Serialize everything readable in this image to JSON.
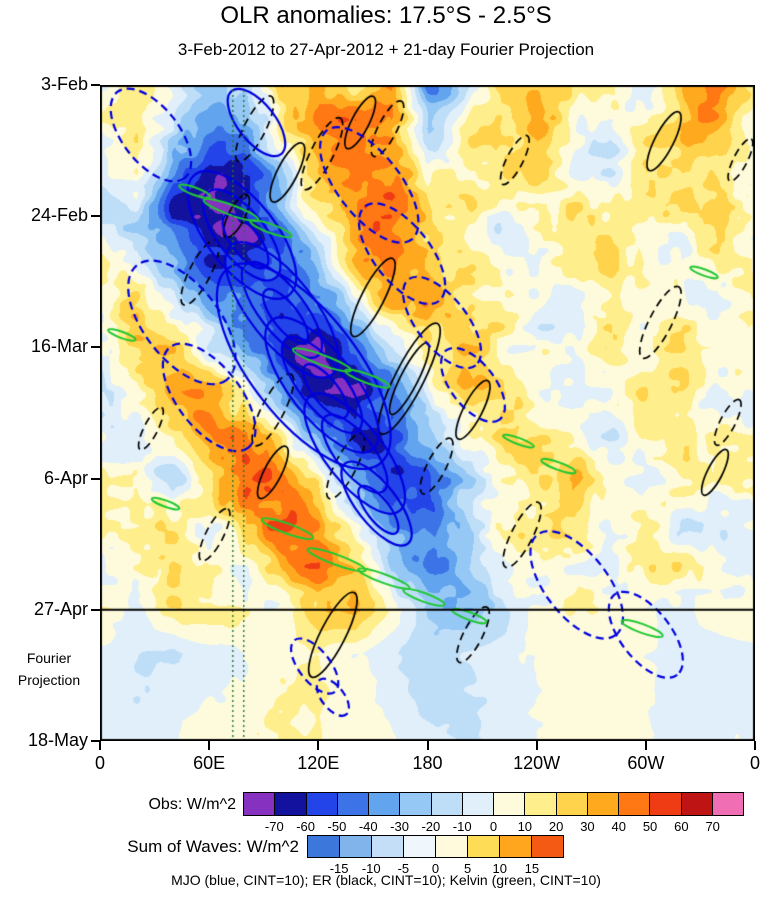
{
  "figure": {
    "title": "OLR anomalies: 17.5°S - 2.5°S",
    "subtitle": "3-Feb-2012 to 27-Apr-2012 + 21-day Fourier Projection",
    "projection_label_line1": "Fourier",
    "projection_label_line2": "Projection",
    "footnote": "MJO (blue, CINT=10); ER (black, CINT=10); Kelvin (green, CINT=10)"
  },
  "chart_data": {
    "type": "heatmap",
    "title": "OLR anomalies: 17.5°S - 2.5°S",
    "subtitle": "3-Feb-2012 to 27-Apr-2012 + 21-day Fourier Projection",
    "x_axis": {
      "ticks": [
        {
          "lon": 0,
          "label": "0"
        },
        {
          "lon": 60,
          "label": "60E"
        },
        {
          "lon": 120,
          "label": "120E"
        },
        {
          "lon": 180,
          "label": "180"
        },
        {
          "lon": 240,
          "label": "120W"
        },
        {
          "lon": 300,
          "label": "60W"
        },
        {
          "lon": 360,
          "label": "0"
        }
      ]
    },
    "y_axis": {
      "ticks": [
        {
          "day": 0,
          "label": "3-Feb"
        },
        {
          "day": 21,
          "label": "24-Feb"
        },
        {
          "day": 42,
          "label": "16-Mar"
        },
        {
          "day": 63,
          "label": "6-Apr"
        },
        {
          "day": 84,
          "label": "27-Apr"
        },
        {
          "day": 105,
          "label": "18-May"
        }
      ]
    },
    "projection_start_day": 84,
    "obs_colorbar": {
      "label": "Obs: W/m^2",
      "tick_labels": [
        "-70",
        "-60",
        "-50",
        "-40",
        "-30",
        "-20",
        "-10",
        "0",
        "10",
        "20",
        "30",
        "40",
        "50",
        "60",
        "70"
      ],
      "colors": [
        "#8631BF",
        "#12129E",
        "#2244E8",
        "#3C74E8",
        "#62A4EE",
        "#96C8F5",
        "#BEDEF8",
        "#E1EFFA",
        "#FEFBDC",
        "#FFEE8C",
        "#FFD34B",
        "#FFAA1E",
        "#FF7814",
        "#F03C14",
        "#BE1414",
        "#F06EB4"
      ]
    },
    "waves_colorbar": {
      "label": "Sum of Waves: W/m^2",
      "tick_labels": [
        "-15",
        "-10",
        "-5",
        "0",
        "5",
        "10",
        "15"
      ],
      "colors": [
        "#3C78DC",
        "#82B4EC",
        "#C3DEF6",
        "#EFF7FD",
        "#FFFADC",
        "#FFDC55",
        "#FFA51E",
        "#F55A14"
      ]
    },
    "field": {
      "units": "W/m^2",
      "lon_start": 0,
      "lon_step": 20,
      "day_start": 0,
      "day_step": 7,
      "values": [
        [
          10,
          20,
          -10,
          -30,
          -20,
          25,
          30,
          20,
          45,
          -35,
          -20,
          25,
          35,
          15,
          5,
          -10,
          30,
          45,
          10
        ],
        [
          5,
          25,
          -20,
          -45,
          -40,
          10,
          35,
          45,
          30,
          -25,
          10,
          20,
          30,
          10,
          -5,
          15,
          40,
          25,
          5
        ],
        [
          -5,
          10,
          -45,
          -65,
          -55,
          -20,
          30,
          50,
          40,
          10,
          15,
          10,
          20,
          5,
          -10,
          20,
          25,
          10,
          -5
        ],
        [
          -10,
          -15,
          -55,
          -70,
          -60,
          -35,
          15,
          40,
          45,
          25,
          10,
          -5,
          10,
          15,
          5,
          10,
          15,
          30,
          5
        ],
        [
          5,
          -10,
          -30,
          -55,
          -65,
          -50,
          -20,
          25,
          40,
          30,
          15,
          5,
          -5,
          10,
          20,
          5,
          -10,
          20,
          10
        ],
        [
          10,
          20,
          -10,
          -35,
          -55,
          -65,
          -45,
          -10,
          30,
          35,
          20,
          10,
          5,
          -5,
          10,
          15,
          5,
          -5,
          5
        ],
        [
          5,
          25,
          30,
          -5,
          -35,
          -60,
          -70,
          -50,
          -15,
          25,
          30,
          15,
          -5,
          5,
          15,
          10,
          20,
          10,
          5
        ],
        [
          -5,
          10,
          35,
          30,
          0,
          -35,
          -60,
          -65,
          -40,
          0,
          25,
          20,
          10,
          -5,
          5,
          20,
          10,
          -5,
          -5
        ],
        [
          5,
          -5,
          15,
          40,
          45,
          10,
          -30,
          -55,
          -60,
          -30,
          10,
          20,
          15,
          10,
          -10,
          5,
          15,
          20,
          5
        ],
        [
          10,
          5,
          -10,
          25,
          50,
          40,
          5,
          -35,
          -55,
          -45,
          -15,
          15,
          25,
          30,
          10,
          -5,
          10,
          5,
          10
        ],
        [
          5,
          15,
          10,
          -5,
          30,
          50,
          35,
          -5,
          -40,
          -50,
          -25,
          5,
          20,
          15,
          5,
          10,
          -5,
          -10,
          5
        ],
        [
          -5,
          10,
          25,
          10,
          5,
          35,
          45,
          25,
          -15,
          -35,
          -30,
          -10,
          10,
          5,
          -5,
          15,
          10,
          5,
          -5
        ],
        [
          5,
          -5,
          15,
          20,
          10,
          5,
          30,
          35,
          10,
          -20,
          -25,
          -15,
          5,
          10,
          10,
          5,
          -5,
          10,
          5
        ],
        [
          0,
          -8,
          -12,
          -5,
          0,
          5,
          8,
          0,
          -10,
          -15,
          -10,
          -5,
          0,
          5,
          5,
          0,
          -8,
          -10,
          0
        ],
        [
          -5,
          -10,
          -8,
          0,
          5,
          10,
          12,
          5,
          -5,
          -12,
          -12,
          -8,
          0,
          5,
          8,
          0,
          -5,
          -8,
          -5
        ],
        [
          0,
          -5,
          0,
          5,
          8,
          12,
          10,
          5,
          0,
          -8,
          -10,
          -5,
          0,
          5,
          5,
          0,
          -5,
          0,
          0
        ]
      ]
    },
    "reference_lines": {
      "color": "#1E7832",
      "style": "dotted",
      "lons": [
        73,
        79
      ]
    },
    "overlays": {
      "mjo": {
        "label": "MJO",
        "color": "#0000E0",
        "cint": 10,
        "ellipses": [
          {
            "lon": 112,
            "day": 45,
            "a": 68,
            "b": 8.5,
            "angle": 52,
            "dash": false
          },
          {
            "lon": 78,
            "day": 24,
            "a": 42,
            "b": 5.5,
            "angle": 52,
            "dash": false
          },
          {
            "lon": 78,
            "day": 24,
            "a": 30,
            "b": 3.8,
            "angle": 52,
            "dash": false
          },
          {
            "lon": 80,
            "day": 25,
            "a": 18,
            "b": 2.2,
            "angle": 52,
            "dash": false
          },
          {
            "lon": 100,
            "day": 36,
            "a": 45,
            "b": 5.2,
            "angle": 52,
            "dash": false
          },
          {
            "lon": 100,
            "day": 36,
            "a": 32,
            "b": 3.6,
            "angle": 52,
            "dash": false
          },
          {
            "lon": 102,
            "day": 37,
            "a": 18,
            "b": 2.0,
            "angle": 52,
            "dash": false
          },
          {
            "lon": 122,
            "day": 48,
            "a": 45,
            "b": 5.2,
            "angle": 52,
            "dash": false
          },
          {
            "lon": 122,
            "day": 48,
            "a": 32,
            "b": 3.6,
            "angle": 52,
            "dash": false
          },
          {
            "lon": 124,
            "day": 49,
            "a": 18,
            "b": 2.0,
            "angle": 52,
            "dash": false
          },
          {
            "lon": 140,
            "day": 59,
            "a": 40,
            "b": 4.6,
            "angle": 52,
            "dash": false
          },
          {
            "lon": 140,
            "day": 59,
            "a": 26,
            "b": 3.0,
            "angle": 52,
            "dash": false
          },
          {
            "lon": 152,
            "day": 67,
            "a": 28,
            "b": 3.2,
            "angle": 52,
            "dash": false
          },
          {
            "lon": 153,
            "day": 68,
            "a": 16,
            "b": 1.8,
            "angle": 52,
            "dash": false
          },
          {
            "lon": 86,
            "day": 6,
            "a": 22,
            "b": 3.0,
            "angle": 52,
            "dash": false
          },
          {
            "lon": 28,
            "day": 8,
            "a": 30,
            "b": 4.5,
            "angle": 52,
            "dash": true
          },
          {
            "lon": 45,
            "day": 38,
            "a": 40,
            "b": 6.0,
            "angle": 52,
            "dash": true
          },
          {
            "lon": 60,
            "day": 50,
            "a": 35,
            "b": 5.0,
            "angle": 52,
            "dash": true
          },
          {
            "lon": 148,
            "day": 16,
            "a": 38,
            "b": 5.0,
            "angle": 52,
            "dash": true
          },
          {
            "lon": 166,
            "day": 27,
            "a": 33,
            "b": 4.5,
            "angle": 52,
            "dash": true
          },
          {
            "lon": 188,
            "day": 38,
            "a": 30,
            "b": 4.0,
            "angle": 52,
            "dash": true
          },
          {
            "lon": 205,
            "day": 48,
            "a": 24,
            "b": 3.5,
            "angle": 52,
            "dash": true
          },
          {
            "lon": 262,
            "day": 80,
            "a": 35,
            "b": 5.0,
            "angle": 52,
            "dash": true
          },
          {
            "lon": 300,
            "day": 88,
            "a": 28,
            "b": 4.0,
            "angle": 52,
            "dash": true
          },
          {
            "lon": 118,
            "day": 93,
            "a": 18,
            "b": 2.5,
            "angle": 52,
            "dash": true
          },
          {
            "lon": 128,
            "day": 98,
            "a": 12,
            "b": 1.8,
            "angle": 52,
            "dash": true
          }
        ]
      },
      "er": {
        "label": "ER",
        "color": "#000000",
        "cint": 10,
        "ellipses": [
          {
            "lon": 103,
            "day": 14,
            "a": 18,
            "b": 1.6,
            "angle": -63,
            "dash": false
          },
          {
            "lon": 75,
            "day": 21,
            "a": 13,
            "b": 1.3,
            "angle": -63,
            "dash": false
          },
          {
            "lon": 143,
            "day": 6,
            "a": 16,
            "b": 1.4,
            "angle": -63,
            "dash": false
          },
          {
            "lon": 150,
            "day": 34,
            "a": 24,
            "b": 1.8,
            "angle": -63,
            "dash": false
          },
          {
            "lon": 170,
            "day": 47,
            "a": 34,
            "b": 2.3,
            "angle": -63,
            "dash": false
          },
          {
            "lon": 170,
            "day": 47,
            "a": 22,
            "b": 1.4,
            "angle": -63,
            "dash": false
          },
          {
            "lon": 205,
            "day": 52,
            "a": 18,
            "b": 1.5,
            "angle": -63,
            "dash": false
          },
          {
            "lon": 128,
            "day": 88,
            "a": 26,
            "b": 2.0,
            "angle": -63,
            "dash": false
          },
          {
            "lon": 95,
            "day": 62,
            "a": 16,
            "b": 1.4,
            "angle": -63,
            "dash": false
          },
          {
            "lon": 310,
            "day": 9,
            "a": 18,
            "b": 1.5,
            "angle": -63,
            "dash": false
          },
          {
            "lon": 338,
            "day": 62,
            "a": 14,
            "b": 1.2,
            "angle": -63,
            "dash": false
          },
          {
            "lon": 85,
            "day": 7,
            "a": 20,
            "b": 1.7,
            "angle": -63,
            "dash": true
          },
          {
            "lon": 122,
            "day": 11,
            "a": 22,
            "b": 1.8,
            "angle": -63,
            "dash": true
          },
          {
            "lon": 158,
            "day": 7,
            "a": 17,
            "b": 1.5,
            "angle": -63,
            "dash": true
          },
          {
            "lon": 228,
            "day": 12,
            "a": 15,
            "b": 1.3,
            "angle": -63,
            "dash": true
          },
          {
            "lon": 352,
            "day": 12,
            "a": 13,
            "b": 1.1,
            "angle": -63,
            "dash": true
          },
          {
            "lon": 55,
            "day": 30,
            "a": 20,
            "b": 1.7,
            "angle": -63,
            "dash": true
          },
          {
            "lon": 308,
            "day": 38,
            "a": 22,
            "b": 1.8,
            "angle": -63,
            "dash": true
          },
          {
            "lon": 95,
            "day": 52,
            "a": 22,
            "b": 1.8,
            "angle": -63,
            "dash": true
          },
          {
            "lon": 135,
            "day": 61,
            "a": 20,
            "b": 1.7,
            "angle": -63,
            "dash": true
          },
          {
            "lon": 185,
            "day": 61,
            "a": 17,
            "b": 1.5,
            "angle": -63,
            "dash": true
          },
          {
            "lon": 28,
            "day": 55,
            "a": 13,
            "b": 1.1,
            "angle": -63,
            "dash": true
          },
          {
            "lon": 345,
            "day": 54,
            "a": 14,
            "b": 1.2,
            "angle": -63,
            "dash": true
          },
          {
            "lon": 63,
            "day": 72,
            "a": 16,
            "b": 1.4,
            "angle": -63,
            "dash": true
          },
          {
            "lon": 232,
            "day": 72,
            "a": 20,
            "b": 1.7,
            "angle": -63,
            "dash": true
          },
          {
            "lon": 205,
            "day": 88,
            "a": 17,
            "b": 1.5,
            "angle": -63,
            "dash": true
          }
        ]
      },
      "kelvin": {
        "label": "Kelvin",
        "color": "#22C832",
        "cint": 10,
        "ellipses": [
          {
            "lon": 72,
            "day": 20,
            "a": 16,
            "b": 0.8,
            "angle": 20,
            "dash": false
          },
          {
            "lon": 94,
            "day": 23,
            "a": 12,
            "b": 0.7,
            "angle": 20,
            "dash": false
          },
          {
            "lon": 52,
            "day": 17,
            "a": 9,
            "b": 0.6,
            "angle": 20,
            "dash": false
          },
          {
            "lon": 122,
            "day": 44,
            "a": 17,
            "b": 0.8,
            "angle": 20,
            "dash": false
          },
          {
            "lon": 147,
            "day": 47,
            "a": 13,
            "b": 0.7,
            "angle": 20,
            "dash": false
          },
          {
            "lon": 12,
            "day": 40,
            "a": 8,
            "b": 0.5,
            "angle": 20,
            "dash": false
          },
          {
            "lon": 103,
            "day": 71,
            "a": 15,
            "b": 0.8,
            "angle": 20,
            "dash": false
          },
          {
            "lon": 130,
            "day": 76,
            "a": 17,
            "b": 0.8,
            "angle": 20,
            "dash": false
          },
          {
            "lon": 156,
            "day": 79,
            "a": 15,
            "b": 0.7,
            "angle": 20,
            "dash": false
          },
          {
            "lon": 178,
            "day": 82,
            "a": 12,
            "b": 0.7,
            "angle": 20,
            "dash": false
          },
          {
            "lon": 203,
            "day": 85,
            "a": 10,
            "b": 0.6,
            "angle": 20,
            "dash": false
          },
          {
            "lon": 252,
            "day": 61,
            "a": 10,
            "b": 0.6,
            "angle": 20,
            "dash": false
          },
          {
            "lon": 298,
            "day": 87,
            "a": 12,
            "b": 0.7,
            "angle": 20,
            "dash": false
          },
          {
            "lon": 36,
            "day": 67,
            "a": 8,
            "b": 0.5,
            "angle": 20,
            "dash": false
          },
          {
            "lon": 230,
            "day": 57,
            "a": 9,
            "b": 0.5,
            "angle": 20,
            "dash": false
          },
          {
            "lon": 332,
            "day": 30,
            "a": 8,
            "b": 0.5,
            "angle": 20,
            "dash": false
          }
        ]
      }
    }
  }
}
